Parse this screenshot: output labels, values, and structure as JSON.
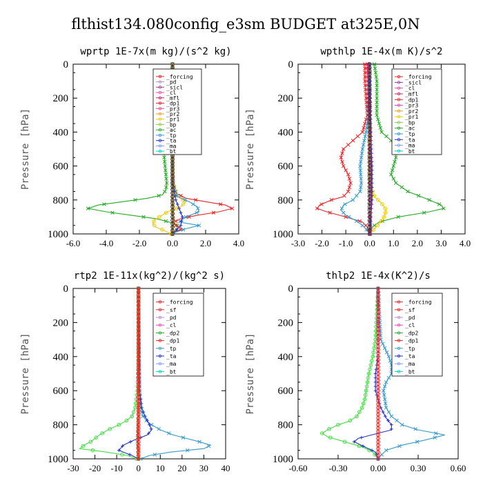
{
  "figure_title": "flthist134.080config_e3sm  BUDGET at325E,0N",
  "chart_data": [
    {
      "type": "line",
      "title": "wprtp  1E-7x(m kg)/(s^2 kg)",
      "ylabel": "Pressure [hPa]",
      "xlim": [
        -6,
        4
      ],
      "ylim": [
        1000,
        0
      ],
      "xticks": [
        "-6.0",
        "-4.0",
        "-2.0",
        "0.0",
        "2.0",
        "4.0"
      ],
      "xtick_values": [
        -6,
        -4,
        -2,
        0,
        2,
        4
      ],
      "yticks": [
        "0",
        "200",
        "400",
        "600",
        "800",
        "1000"
      ],
      "ytick_values": [
        0,
        200,
        400,
        600,
        800,
        1000
      ],
      "legend": [
        "_forcing",
        "_pd",
        "_sicl",
        "_cl",
        "_mfl",
        "_dp1",
        "_pr3",
        "_pr2",
        "_pr1",
        "_bp",
        "_ac",
        "_tp",
        "_ta",
        "_ma",
        "_bt"
      ],
      "series": [
        {
          "name": "_ac",
          "color": "#22aa22",
          "marker": "x",
          "y": [
            0,
            100,
            200,
            300,
            360,
            400,
            450,
            500,
            550,
            600,
            650,
            700,
            740,
            770,
            790,
            810,
            830,
            850,
            870,
            890,
            910,
            930,
            950,
            970,
            990,
            1000
          ],
          "x": [
            0,
            0,
            0,
            -0.05,
            -0.1,
            -0.3,
            -0.45,
            -0.5,
            -0.5,
            -0.45,
            -0.4,
            -0.35,
            -0.4,
            -0.6,
            -1.5,
            -3.0,
            -4.5,
            -5.1,
            -4.0,
            -2.5,
            -1.0,
            -0.2,
            0.3,
            0.3,
            0.1,
            0
          ]
        },
        {
          "name": "_dp1",
          "color": "#ee2222",
          "marker": "x",
          "y": [
            0,
            300,
            600,
            700,
            760,
            790,
            810,
            830,
            850,
            870,
            890,
            910,
            930,
            950,
            970,
            990,
            1000
          ],
          "x": [
            0,
            0,
            0,
            0.05,
            0.2,
            0.8,
            2.0,
            3.2,
            3.6,
            2.8,
            1.5,
            0.5,
            0.1,
            0.2,
            0.6,
            0.1,
            0
          ]
        },
        {
          "name": "_pr1",
          "color": "#f0c800",
          "marker": "o",
          "y": [
            0,
            700,
            780,
            810,
            840,
            870,
            900,
            920,
            940,
            960,
            980,
            1000
          ],
          "x": [
            0,
            0,
            0.3,
            0.8,
            0.5,
            -0.3,
            -0.8,
            -1.1,
            -1.2,
            -1.0,
            -0.5,
            -0.1
          ]
        },
        {
          "name": "_tp",
          "color": "#3399cc",
          "marker": "x",
          "y": [
            0,
            700,
            780,
            810,
            840,
            870,
            900,
            930,
            950,
            970,
            990,
            1000
          ],
          "x": [
            0,
            0,
            0.3,
            1.0,
            1.5,
            1.6,
            0.8,
            0.4,
            1.6,
            0.8,
            0.2,
            0
          ]
        },
        {
          "name": "_ta",
          "color": "#2233cc",
          "marker": "+",
          "y": [
            0,
            700,
            800,
            850,
            900,
            950,
            980,
            1000
          ],
          "x": [
            0,
            0,
            0.2,
            0.4,
            0.6,
            0.5,
            0.2,
            0
          ]
        },
        {
          "name": "_bp",
          "color": "#e8a020",
          "marker": "^",
          "y": [
            0,
            800,
            900,
            1000
          ],
          "x": [
            0,
            0,
            0.05,
            0
          ]
        },
        {
          "name": "_ma",
          "color": "#7799ff",
          "marker": "-",
          "y": [
            0,
            1000
          ],
          "x": [
            0,
            0
          ]
        },
        {
          "name": "_forcing",
          "color": "#333333",
          "marker": "o",
          "y": [
            0,
            1000
          ],
          "x": [
            0,
            0
          ]
        }
      ]
    },
    {
      "type": "line",
      "title": "wpthlp  1E-4x(m K)/s^2",
      "ylabel": "Pressure [hPa]",
      "xlim": [
        -3,
        4
      ],
      "ylim": [
        1000,
        0
      ],
      "xticks": [
        "-3.0",
        "-2.0",
        "-1.0",
        "0.0",
        "1.0",
        "2.0",
        "3.0",
        "4.0"
      ],
      "xtick_values": [
        -3,
        -2,
        -1,
        0,
        1,
        2,
        3,
        4
      ],
      "yticks": [
        "0",
        "200",
        "400",
        "600",
        "800",
        "1000"
      ],
      "ytick_values": [
        0,
        200,
        400,
        600,
        800,
        1000
      ],
      "legend": [
        "_forcing",
        "_sicl",
        "_cl",
        "_mfl",
        "_dp1",
        "_pr3",
        "_pr2",
        "_pr1",
        "_bp",
        "_ac",
        "_tp",
        "_ta",
        "_ma",
        "_bt"
      ],
      "series": [
        {
          "name": "_ac",
          "color": "#22aa22",
          "marker": "x",
          "y": [
            0,
            100,
            200,
            300,
            400,
            450,
            500,
            550,
            600,
            650,
            700,
            750,
            800,
            830,
            850,
            870,
            900,
            930,
            960,
            1000
          ],
          "x": [
            0.2,
            0.3,
            0.3,
            0.3,
            0.5,
            0.9,
            1.1,
            1.1,
            1.0,
            0.9,
            1.1,
            1.6,
            2.5,
            3.0,
            3.1,
            2.5,
            1.2,
            0.4,
            0.1,
            0
          ]
        },
        {
          "name": "_dp1",
          "color": "#ee2222",
          "marker": "x",
          "y": [
            0,
            100,
            200,
            300,
            400,
            450,
            500,
            550,
            600,
            650,
            700,
            750,
            780,
            800,
            830,
            850,
            870,
            900,
            930,
            960,
            1000
          ],
          "x": [
            -0.2,
            -0.2,
            -0.15,
            -0.1,
            -0.3,
            -0.7,
            -1.1,
            -1.2,
            -1.1,
            -0.9,
            -0.8,
            -0.9,
            -1.1,
            -1.6,
            -2.1,
            -2.2,
            -1.8,
            -1.0,
            -0.3,
            -0.1,
            0
          ]
        },
        {
          "name": "_tp",
          "color": "#3399cc",
          "marker": "x",
          "y": [
            0,
            300,
            400,
            500,
            600,
            700,
            750,
            800,
            830,
            860,
            890,
            920,
            950,
            980,
            1000
          ],
          "x": [
            0,
            -0.05,
            -0.15,
            -0.3,
            -0.4,
            -0.35,
            -0.4,
            -0.7,
            -1.1,
            -1.2,
            -1.0,
            -0.6,
            -0.3,
            -0.1,
            0
          ]
        },
        {
          "name": "_pr1",
          "color": "#f0c800",
          "marker": "o",
          "y": [
            0,
            700,
            780,
            820,
            860,
            900,
            940,
            970,
            1000
          ],
          "x": [
            0,
            0,
            0.2,
            0.5,
            0.7,
            0.6,
            0.4,
            0.2,
            0
          ]
        },
        {
          "name": "_ta",
          "color": "#2233cc",
          "marker": "+",
          "y": [
            0,
            400,
            600,
            800,
            1000
          ],
          "x": [
            0,
            0.05,
            0.1,
            0.1,
            0
          ]
        },
        {
          "name": "_mfl",
          "color": "#cc2266",
          "marker": "<",
          "y": [
            0,
            200,
            400,
            1000
          ],
          "x": [
            -0.1,
            -0.05,
            0,
            0
          ]
        },
        {
          "name": "_ma",
          "color": "#7799ff",
          "marker": "-",
          "y": [
            0,
            1000
          ],
          "x": [
            0,
            0
          ]
        },
        {
          "name": "_forcing",
          "color": "#333333",
          "marker": "o",
          "y": [
            0,
            1000
          ],
          "x": [
            0,
            0
          ]
        }
      ]
    },
    {
      "type": "line",
      "title": "rtp2  1E-11x(kg^2)/(kg^2 s)",
      "ylabel": "Pressure [hPa]",
      "xlim": [
        -30,
        40
      ],
      "ylim": [
        1000,
        0
      ],
      "xticks": [
        "-30",
        "-20",
        "-10",
        "0",
        "10",
        "20",
        "30",
        "40"
      ],
      "xtick_values": [
        -30,
        -20,
        -10,
        0,
        10,
        20,
        30,
        40
      ],
      "yticks": [
        "0",
        "200",
        "400",
        "600",
        "800",
        "1000"
      ],
      "ytick_values": [
        0,
        200,
        400,
        600,
        800,
        1000
      ],
      "legend": [
        "_forcing",
        "_sf",
        "_pd",
        "_cl",
        "_dp2",
        "_dp1",
        "_tp",
        "_ta",
        "_ma",
        "_bt"
      ],
      "series": [
        {
          "name": "_dp1",
          "color": "#44dd44",
          "marker": "o",
          "y": [
            0,
            400,
            600,
            700,
            750,
            780,
            800,
            830,
            860,
            880,
            900,
            920,
            940,
            960,
            980,
            1000
          ],
          "x": [
            0,
            0,
            -0.5,
            -1.5,
            -3.0,
            -6.0,
            -9.0,
            -14.0,
            -18.0,
            -20.0,
            -22.0,
            -25.0,
            -27.0,
            -15.0,
            -5.0,
            -1.0
          ]
        },
        {
          "name": "_tp",
          "color": "#3399cc",
          "marker": "x",
          "y": [
            0,
            600,
            700,
            750,
            780,
            800,
            830,
            860,
            880,
            900,
            920,
            940,
            960,
            980,
            1000
          ],
          "x": [
            0,
            0.5,
            1.0,
            2.0,
            4.0,
            6.0,
            10.0,
            16.0,
            22.0,
            28.0,
            33.0,
            30.0,
            15.0,
            5.0,
            1.0
          ]
        },
        {
          "name": "_ta",
          "color": "#2233cc",
          "marker": "+",
          "y": [
            0,
            600,
            700,
            750,
            800,
            830,
            860,
            890,
            920,
            950,
            980,
            1000
          ],
          "x": [
            0,
            0.5,
            1.5,
            3.0,
            5.0,
            6.0,
            4.0,
            -2.0,
            -7.0,
            -9.0,
            -3.0,
            0
          ]
        },
        {
          "name": "_dp2",
          "color": "#22aa22",
          "marker": "x",
          "y": [
            0,
            700,
            900,
            1000
          ],
          "x": [
            0,
            0,
            -0.5,
            0
          ]
        },
        {
          "name": "_forcing",
          "color": "#ee2222",
          "marker": "o",
          "y": [
            0,
            1000
          ],
          "x": [
            0,
            0
          ]
        }
      ]
    },
    {
      "type": "line",
      "title": "thlp2  1E-4x(K^2)/s",
      "ylabel": "Pressure [hPa]",
      "xlim": [
        -0.6,
        0.6
      ],
      "ylim": [
        1000,
        0
      ],
      "xticks": [
        "-0.60",
        "-0.30",
        "0.00",
        "0.30",
        "0.60"
      ],
      "xtick_values": [
        -0.6,
        -0.3,
        0,
        0.3,
        0.6
      ],
      "yticks": [
        "0",
        "200",
        "400",
        "600",
        "800",
        "1000"
      ],
      "ytick_values": [
        0,
        200,
        400,
        600,
        800,
        1000
      ],
      "legend": [
        "_forcing",
        "_sf",
        "_pd",
        "_cl",
        "_dp2",
        "_dp1",
        "_tp",
        "_ta",
        "_ma",
        "_bt"
      ],
      "series": [
        {
          "name": "_dp1",
          "color": "#44dd44",
          "marker": "o",
          "y": [
            0,
            300,
            400,
            500,
            600,
            650,
            700,
            750,
            780,
            800,
            830,
            850,
            870,
            900,
            930,
            960,
            1000
          ],
          "x": [
            0,
            -0.02,
            -0.04,
            -0.07,
            -0.09,
            -0.1,
            -0.12,
            -0.16,
            -0.22,
            -0.3,
            -0.38,
            -0.42,
            -0.38,
            -0.25,
            -0.12,
            -0.04,
            0
          ]
        },
        {
          "name": "_tp",
          "color": "#3399cc",
          "marker": "x",
          "y": [
            0,
            300,
            400,
            450,
            500,
            550,
            600,
            700,
            750,
            800,
            830,
            860,
            890,
            920,
            950,
            980,
            1000
          ],
          "x": [
            0,
            0.02,
            0.08,
            0.1,
            0.1,
            0.06,
            0.04,
            0.06,
            0.1,
            0.18,
            0.3,
            0.5,
            0.35,
            0.18,
            0.06,
            0.02,
            0
          ]
        },
        {
          "name": "_ta",
          "color": "#2233cc",
          "marker": "+",
          "y": [
            0,
            400,
            500,
            600,
            700,
            760,
            800,
            830,
            860,
            880,
            900,
            930,
            960,
            1000
          ],
          "x": [
            0,
            0,
            -0.02,
            -0.02,
            0.02,
            0.06,
            0.1,
            0.1,
            -0.05,
            -0.15,
            -0.18,
            -0.1,
            -0.02,
            0
          ]
        },
        {
          "name": "_forcing",
          "color": "#ee2222",
          "marker": "o",
          "y": [
            0,
            1000
          ],
          "x": [
            0,
            0
          ]
        }
      ]
    }
  ]
}
